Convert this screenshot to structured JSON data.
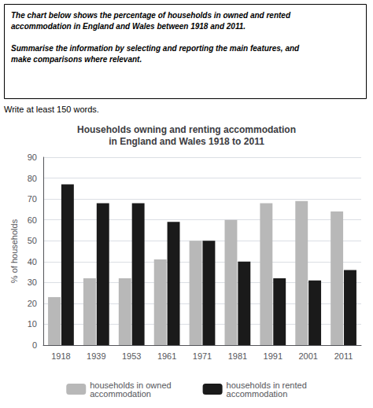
{
  "chart_data": {
    "type": "bar",
    "title": "Households owning and renting accommodation\nin England and Wales 1918 to 2011",
    "annotations": [
      "The chart below shows the percentage of households in owned and rented\naccommodation in England and Wales between 1918 and 2011.\n\nSummarise the information by selecting and reporting the main features, and\nmake comparisons where relevant.",
      "Write at least 150 words."
    ],
    "categories": [
      "1918",
      "1939",
      "1953",
      "1961",
      "1971",
      "1981",
      "1991",
      "2001",
      "2011"
    ],
    "series": [
      {
        "name": "households in owned\naccommodation",
        "color": "#b8b8b8",
        "values": [
          23,
          32,
          32,
          41,
          50,
          60,
          68,
          69,
          64
        ]
      },
      {
        "name": "households in rented\naccommodation",
        "color": "#1a1a1a",
        "values": [
          77,
          68,
          68,
          59,
          50,
          40,
          32,
          31,
          36
        ]
      }
    ],
    "ylabel": "% of households",
    "ylim": [
      0,
      90
    ],
    "yticks": [
      0,
      10,
      20,
      30,
      40,
      50,
      60,
      70,
      80,
      90
    ],
    "grid": true,
    "legend": "bottom"
  }
}
